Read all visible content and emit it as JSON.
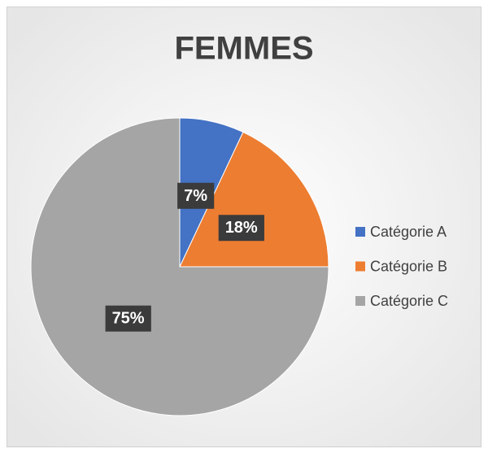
{
  "chart_data": {
    "type": "pie",
    "title": "FEMMES",
    "categories": [
      "Catégorie A",
      "Catégorie B",
      "Catégorie C"
    ],
    "values": [
      7,
      18,
      75
    ],
    "value_labels": [
      "7%",
      "18%",
      "75%"
    ],
    "colors": [
      "#4472c4",
      "#ed7d31",
      "#a5a5a5"
    ],
    "legend": "right"
  }
}
